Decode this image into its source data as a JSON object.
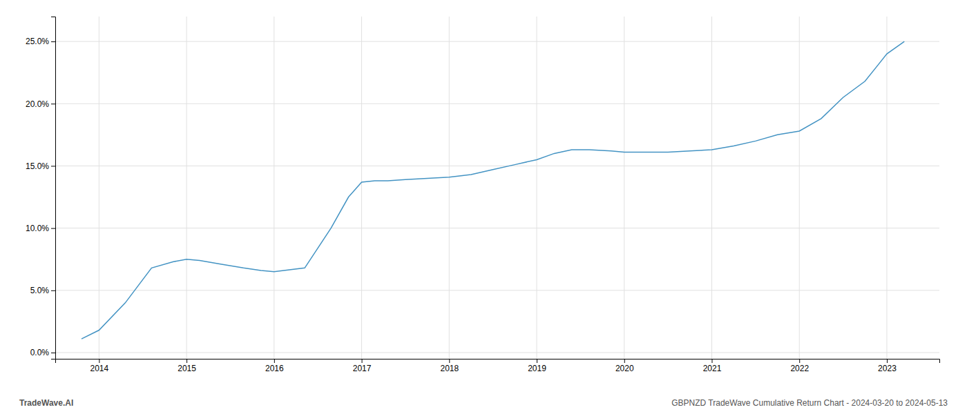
{
  "chart_data": {
    "type": "line",
    "x": [
      2013.8,
      2014.0,
      2014.3,
      2014.6,
      2014.85,
      2015.0,
      2015.15,
      2015.4,
      2015.65,
      2015.85,
      2016.0,
      2016.35,
      2016.65,
      2016.85,
      2017.0,
      2017.15,
      2017.3,
      2017.5,
      2017.75,
      2018.0,
      2018.25,
      2018.5,
      2018.75,
      2019.0,
      2019.2,
      2019.4,
      2019.6,
      2019.85,
      2020.0,
      2020.2,
      2020.5,
      2020.75,
      2021.0,
      2021.25,
      2021.5,
      2021.75,
      2022.0,
      2022.25,
      2022.5,
      2022.75,
      2023.0,
      2023.2
    ],
    "values": [
      0.011,
      0.018,
      0.04,
      0.068,
      0.073,
      0.075,
      0.074,
      0.071,
      0.068,
      0.066,
      0.065,
      0.068,
      0.1,
      0.125,
      0.137,
      0.138,
      0.138,
      0.139,
      0.14,
      0.141,
      0.143,
      0.147,
      0.151,
      0.155,
      0.16,
      0.163,
      0.163,
      0.162,
      0.161,
      0.161,
      0.161,
      0.162,
      0.163,
      0.166,
      0.17,
      0.175,
      0.178,
      0.188,
      0.205,
      0.218,
      0.24,
      0.25
    ],
    "color": "#4393c3",
    "xlim": [
      2013.5,
      2023.6
    ],
    "ylim": [
      -0.005,
      0.27
    ],
    "xticks": [
      2014,
      2015,
      2016,
      2017,
      2018,
      2019,
      2020,
      2021,
      2022,
      2023
    ],
    "yticks": [
      {
        "value": 0.0,
        "label": "0.0%"
      },
      {
        "value": 0.05,
        "label": "5.0%"
      },
      {
        "value": 0.1,
        "label": "10.0%"
      },
      {
        "value": 0.15,
        "label": "15.0%"
      },
      {
        "value": 0.2,
        "label": "20.0%"
      },
      {
        "value": 0.25,
        "label": "25.0%"
      }
    ],
    "grid": true,
    "annotations": [
      "TradeWave.AI",
      "GBPNZD TradeWave Cumulative Return Chart - 2024-03-20 to 2024-05-13"
    ]
  }
}
